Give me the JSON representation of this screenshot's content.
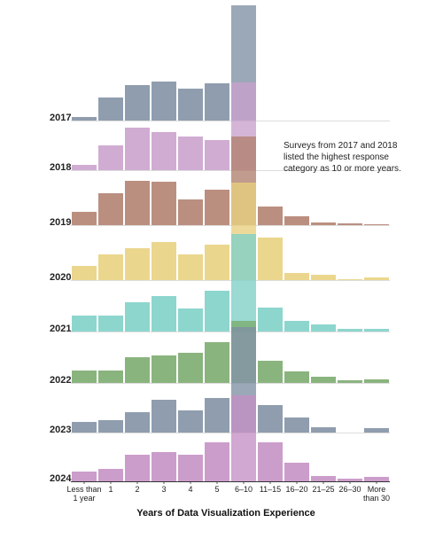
{
  "chart_data": {
    "type": "bar",
    "layout": "ridgeline",
    "xlabel": "Years of Data Visualization Experience",
    "categories": [
      "Less than 1 year",
      "1",
      "2",
      "3",
      "4",
      "5",
      "6–10",
      "11–15",
      "16–20",
      "21–25",
      "26–30",
      "More than 30"
    ],
    "category_labels": [
      [
        "Less than",
        "1 year"
      ],
      [
        "1"
      ],
      [
        "2"
      ],
      [
        "3"
      ],
      [
        "4"
      ],
      [
        "5"
      ],
      [
        "6–10"
      ],
      [
        "11–15"
      ],
      [
        "16–20"
      ],
      [
        "21–25"
      ],
      [
        "26–30"
      ],
      [
        "More",
        "than 30"
      ]
    ],
    "annotation": "Surveys from 2017 and 2018 listed the highest response category as 10 or more years.",
    "unit_scale": 1.0,
    "series": [
      {
        "name": "2017",
        "color": "#7f8fa3",
        "values": [
          4,
          26,
          40,
          44,
          36,
          42,
          130,
          null,
          null,
          null,
          null,
          null
        ]
      },
      {
        "name": "2018",
        "color": "#c9a0cc",
        "values": [
          6,
          28,
          48,
          43,
          38,
          34,
          99,
          null,
          null,
          null,
          null,
          null
        ]
      },
      {
        "name": "2019",
        "color": "#b07f6d",
        "values": [
          15,
          36,
          50,
          49,
          29,
          40,
          100,
          21,
          10,
          3,
          2,
          1
        ]
      },
      {
        "name": "2020",
        "color": "#e8d07e",
        "values": [
          16,
          29,
          36,
          43,
          29,
          40,
          110,
          48,
          8,
          6,
          1,
          3
        ]
      },
      {
        "name": "2021",
        "color": "#7dd0c7",
        "values": [
          18,
          18,
          33,
          40,
          26,
          46,
          110,
          27,
          12,
          8,
          3,
          3
        ]
      },
      {
        "name": "2022",
        "color": "#7aaa6c",
        "values": [
          14,
          14,
          29,
          31,
          34,
          46,
          70,
          25,
          13,
          7,
          3,
          4
        ]
      },
      {
        "name": "2023",
        "color": "#7f8fa3",
        "values": [
          12,
          14,
          23,
          37,
          25,
          39,
          119,
          31,
          17,
          6,
          null,
          5
        ]
      },
      {
        "name": "2024",
        "color": "#c48fc4",
        "values": [
          11,
          14,
          30,
          33,
          30,
          44,
          97,
          44,
          21,
          6,
          3,
          5
        ]
      }
    ]
  }
}
